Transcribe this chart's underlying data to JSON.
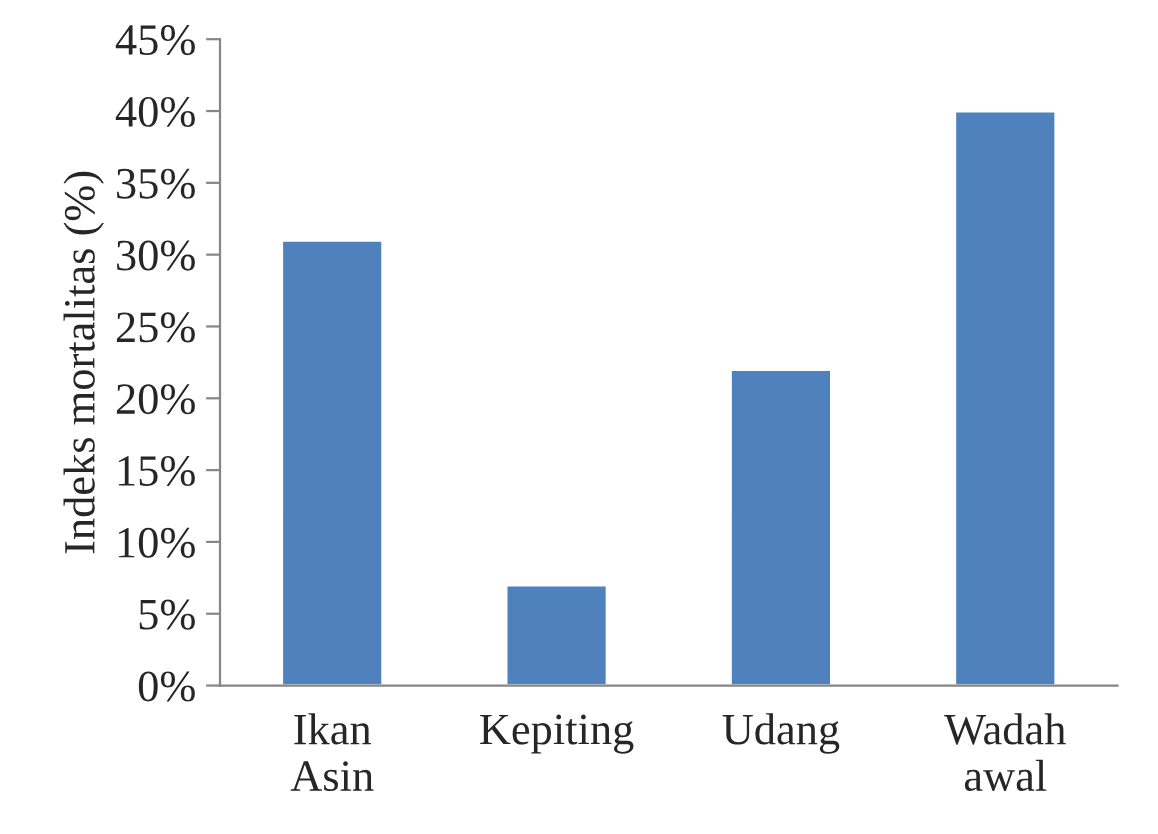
{
  "chart_data": {
    "type": "bar",
    "ylabel": "Indeks mortalitas (%)",
    "categories": [
      "Ikan\nAsin",
      "Kepiting",
      "Udang",
      "Wadah\nawal"
    ],
    "values": [
      31,
      7,
      22,
      40
    ],
    "color": "#4f81bd",
    "ylim": [
      0,
      45
    ],
    "yticks": [
      {
        "value": 0,
        "label": "0%"
      },
      {
        "value": 5,
        "label": "5%"
      },
      {
        "value": 10,
        "label": "10%"
      },
      {
        "value": 15,
        "label": "15%"
      },
      {
        "value": 20,
        "label": "20%"
      },
      {
        "value": 25,
        "label": "25%"
      },
      {
        "value": 30,
        "label": "30%"
      },
      {
        "value": 35,
        "label": "35%"
      },
      {
        "value": 40,
        "label": "40%"
      },
      {
        "value": 45,
        "label": "45%"
      }
    ],
    "grid": false,
    "legend": false
  }
}
